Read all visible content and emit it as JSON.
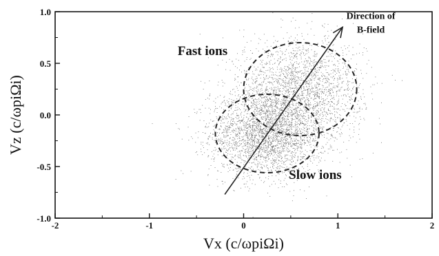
{
  "chart_data": {
    "type": "scatter",
    "xlabel": "Vx (c/ωpiΩi)",
    "ylabel": "Vz (c/ωpiΩi)",
    "xlim": [
      -2,
      2
    ],
    "ylim": [
      -1.0,
      1.0
    ],
    "x_ticks": [
      "-2",
      "-1",
      "0",
      "1",
      "2"
    ],
    "y_ticks": [
      "1.0",
      "0.5",
      "0.0",
      "-0.5",
      "-1.0"
    ],
    "grid": false,
    "clusters": [
      {
        "label": "Slow ions",
        "center": [
          0.25,
          -0.18
        ],
        "radius_x": 0.55,
        "radius_y": 0.38
      },
      {
        "label": "Fast ions",
        "center": [
          0.6,
          0.25
        ],
        "radius_x": 0.6,
        "radius_y": 0.45
      }
    ],
    "arrow": {
      "from": [
        -0.2,
        -0.77
      ],
      "to": [
        1.05,
        0.85
      ]
    },
    "annotations": [
      {
        "text": "Fast ions",
        "x": -0.7,
        "y": 0.58
      },
      {
        "text": "Slow ions",
        "x": 0.48,
        "y": -0.62
      },
      {
        "text_lines": [
          "Direction of",
          "B-field"
        ],
        "x": 1.35,
        "y": 0.93
      }
    ]
  }
}
